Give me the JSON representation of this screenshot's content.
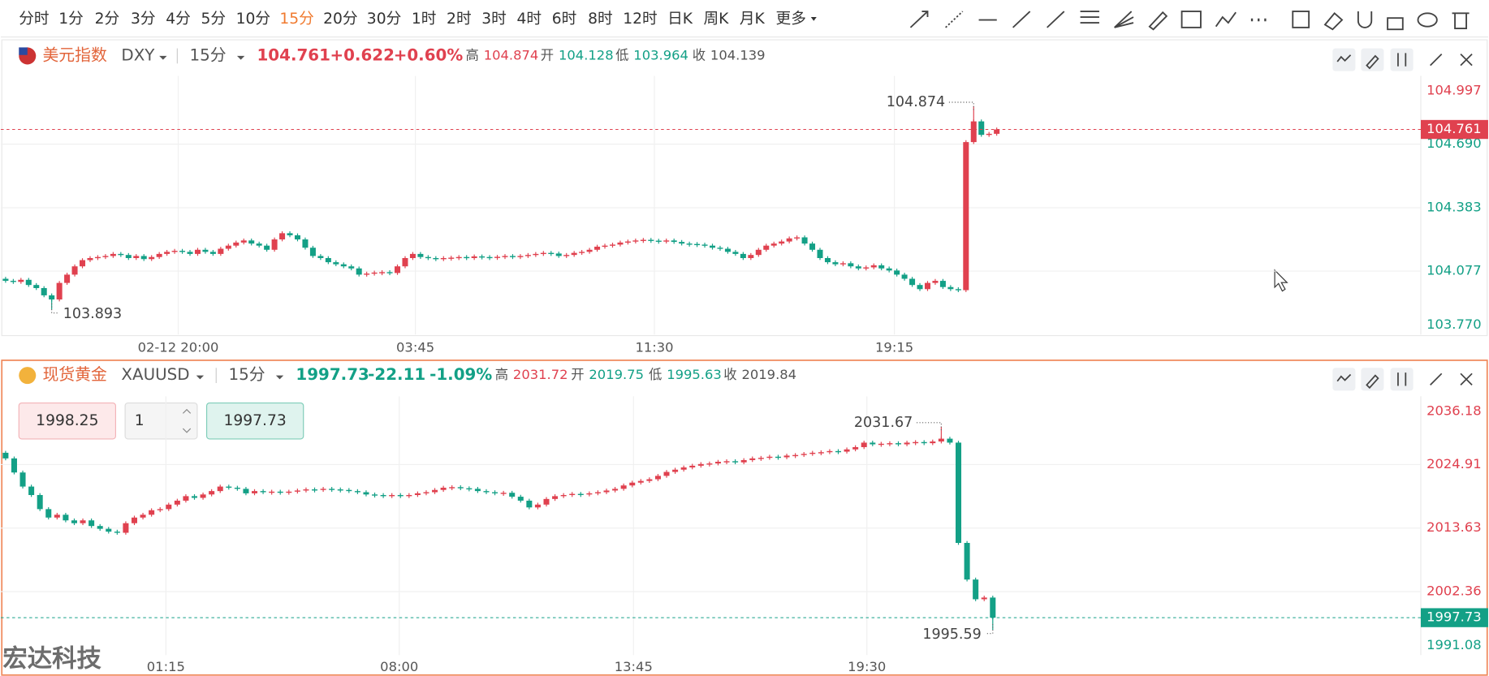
{
  "toolbar": {
    "periods": [
      "分时",
      "1分",
      "2分",
      "3分",
      "4分",
      "5分",
      "10分",
      "15分",
      "20分",
      "30分",
      "1时",
      "2时",
      "3时",
      "4时",
      "6时",
      "8时",
      "12时",
      "日K",
      "周K",
      "月K",
      "更多"
    ],
    "active": 7
  },
  "panels": [
    {
      "name": "美元指数",
      "symbol": "DXY",
      "period": "15分",
      "price": 104.761,
      "change": "+0.622",
      "change_pct": "+0.60%",
      "direction": "up",
      "stats": [
        {
          "label": "高",
          "value": "104.874"
        },
        {
          "label": "开",
          "value": "104.128"
        },
        {
          "label": "低",
          "value": "103.964"
        },
        {
          "label": "收",
          "value": "104.139"
        }
      ]
    },
    {
      "name": "现货黄金",
      "symbol": "XAUUSD",
      "period": "15分",
      "price": 1997.73,
      "change": "-22.11",
      "change_pct": "-1.09%",
      "direction": "down",
      "stats": [
        {
          "label": "高",
          "value": "2031.72"
        },
        {
          "label": "开",
          "value": "2019.75"
        },
        {
          "label": "低",
          "value": "1995.63"
        },
        {
          "label": "收",
          "value": "2019.84"
        }
      ],
      "trade": {
        "sell": "1998.25",
        "quantity": "1",
        "buy": "1997.73"
      }
    }
  ],
  "chart_data": [
    {
      "type": "candlestick",
      "up_color": "#e0414f",
      "down_color": "#13a086",
      "open": 104.04,
      "close": [
        104.03,
        104.025,
        104.035,
        104.01,
        103.995,
        103.96,
        103.94,
        104.02,
        104.06,
        104.1,
        104.13,
        104.14,
        104.145,
        104.15,
        104.16,
        104.155,
        104.14,
        104.15,
        104.135,
        104.145,
        104.16,
        104.17,
        104.175,
        104.17,
        104.16,
        104.18,
        104.17,
        104.16,
        104.185,
        104.2,
        104.215,
        104.225,
        104.21,
        104.2,
        104.18,
        104.23,
        104.26,
        104.25,
        104.23,
        104.19,
        104.15,
        104.14,
        104.12,
        104.11,
        104.1,
        104.09,
        104.06,
        104.065,
        104.07,
        104.072,
        104.068,
        104.1,
        104.14,
        104.16,
        104.145,
        104.14,
        104.138,
        104.14,
        104.142,
        104.145,
        104.14,
        104.148,
        104.145,
        104.142,
        104.146,
        104.15,
        104.148,
        104.15,
        104.155,
        104.16,
        104.165,
        104.162,
        104.15,
        104.155,
        104.165,
        104.17,
        104.18,
        104.195,
        104.2,
        104.205,
        104.215,
        104.22,
        104.225,
        104.228,
        104.224,
        104.222,
        104.225,
        104.218,
        104.21,
        104.208,
        104.205,
        104.2,
        104.19,
        104.185,
        104.17,
        104.16,
        104.14,
        104.155,
        104.18,
        104.2,
        104.21,
        104.22,
        104.235,
        104.24,
        104.21,
        104.18,
        104.14,
        104.12,
        104.11,
        104.115,
        104.1,
        104.09,
        104.095,
        104.105,
        104.09,
        104.08,
        104.06,
        104.04,
        104.01,
        103.99,
        104.02,
        104.03,
        104.0,
        103.99,
        103.985,
        104.7,
        104.8,
        104.735,
        104.74,
        104.761
      ],
      "max_value": 104.874,
      "min_value": 103.893,
      "ylim": [
        103.77,
        104.997
      ],
      "yticks": [
        104.997,
        {
          "value": 104.69,
          "label": "104.690"
        },
        104.383,
        104.077,
        {
          "value": 103.77,
          "label": "103.770"
        }
      ],
      "x_labels": [
        "02-12 20:00",
        "03:45",
        "11:30",
        "19:15"
      ]
    },
    {
      "type": "candlestick",
      "up_color": "#e0414f",
      "down_color": "#13a086",
      "open": 2027.0,
      "close": [
        2026.0,
        2023.5,
        2021.0,
        2019.5,
        2017.0,
        2015.5,
        2016.0,
        2015.0,
        2014.5,
        2015.0,
        2014.0,
        2013.5,
        2013.0,
        2012.8,
        2014.5,
        2015.5,
        2016.0,
        2016.8,
        2017.0,
        2017.8,
        2018.5,
        2019.3,
        2019.0,
        2019.6,
        2020.2,
        2021.0,
        2020.8,
        2020.6,
        2019.8,
        2020.2,
        2020.0,
        2020.1,
        2019.9,
        2020.1,
        2020.3,
        2020.5,
        2020.4,
        2020.6,
        2020.5,
        2020.4,
        2020.2,
        2020.0,
        2019.6,
        2019.5,
        2019.4,
        2019.5,
        2019.3,
        2019.5,
        2019.8,
        2020.0,
        2020.4,
        2020.8,
        2020.9,
        2020.7,
        2020.6,
        2020.2,
        2020.0,
        2019.8,
        2019.9,
        2019.2,
        2018.5,
        2017.3,
        2017.8,
        2018.8,
        2019.3,
        2019.5,
        2019.7,
        2019.6,
        2019.8,
        2020.0,
        2020.3,
        2020.6,
        2021.2,
        2021.7,
        2022.0,
        2022.3,
        2022.9,
        2023.6,
        2024.0,
        2024.4,
        2024.7,
        2025.0,
        2025.1,
        2025.4,
        2025.5,
        2025.3,
        2025.7,
        2026.0,
        2026.1,
        2026.3,
        2026.2,
        2026.5,
        2026.6,
        2026.8,
        2027.0,
        2027.1,
        2027.3,
        2027.2,
        2027.6,
        2028.0,
        2028.8,
        2028.5,
        2028.6,
        2028.7,
        2028.5,
        2028.8,
        2028.9,
        2028.7,
        2029.0,
        2029.5,
        2028.8,
        2011.0,
        2004.5,
        2001.0,
        2001.3,
        1997.73
      ],
      "max_value": 2031.67,
      "min_value": 1995.59,
      "ylim": [
        1991.08,
        2036.18
      ],
      "yticks": [
        2036.18,
        2024.91,
        2013.63,
        2002.36,
        1991.08
      ],
      "x_labels": [
        "01:15",
        "08:00",
        "13:45",
        "19:30"
      ]
    }
  ],
  "watermark": "宏达科技"
}
